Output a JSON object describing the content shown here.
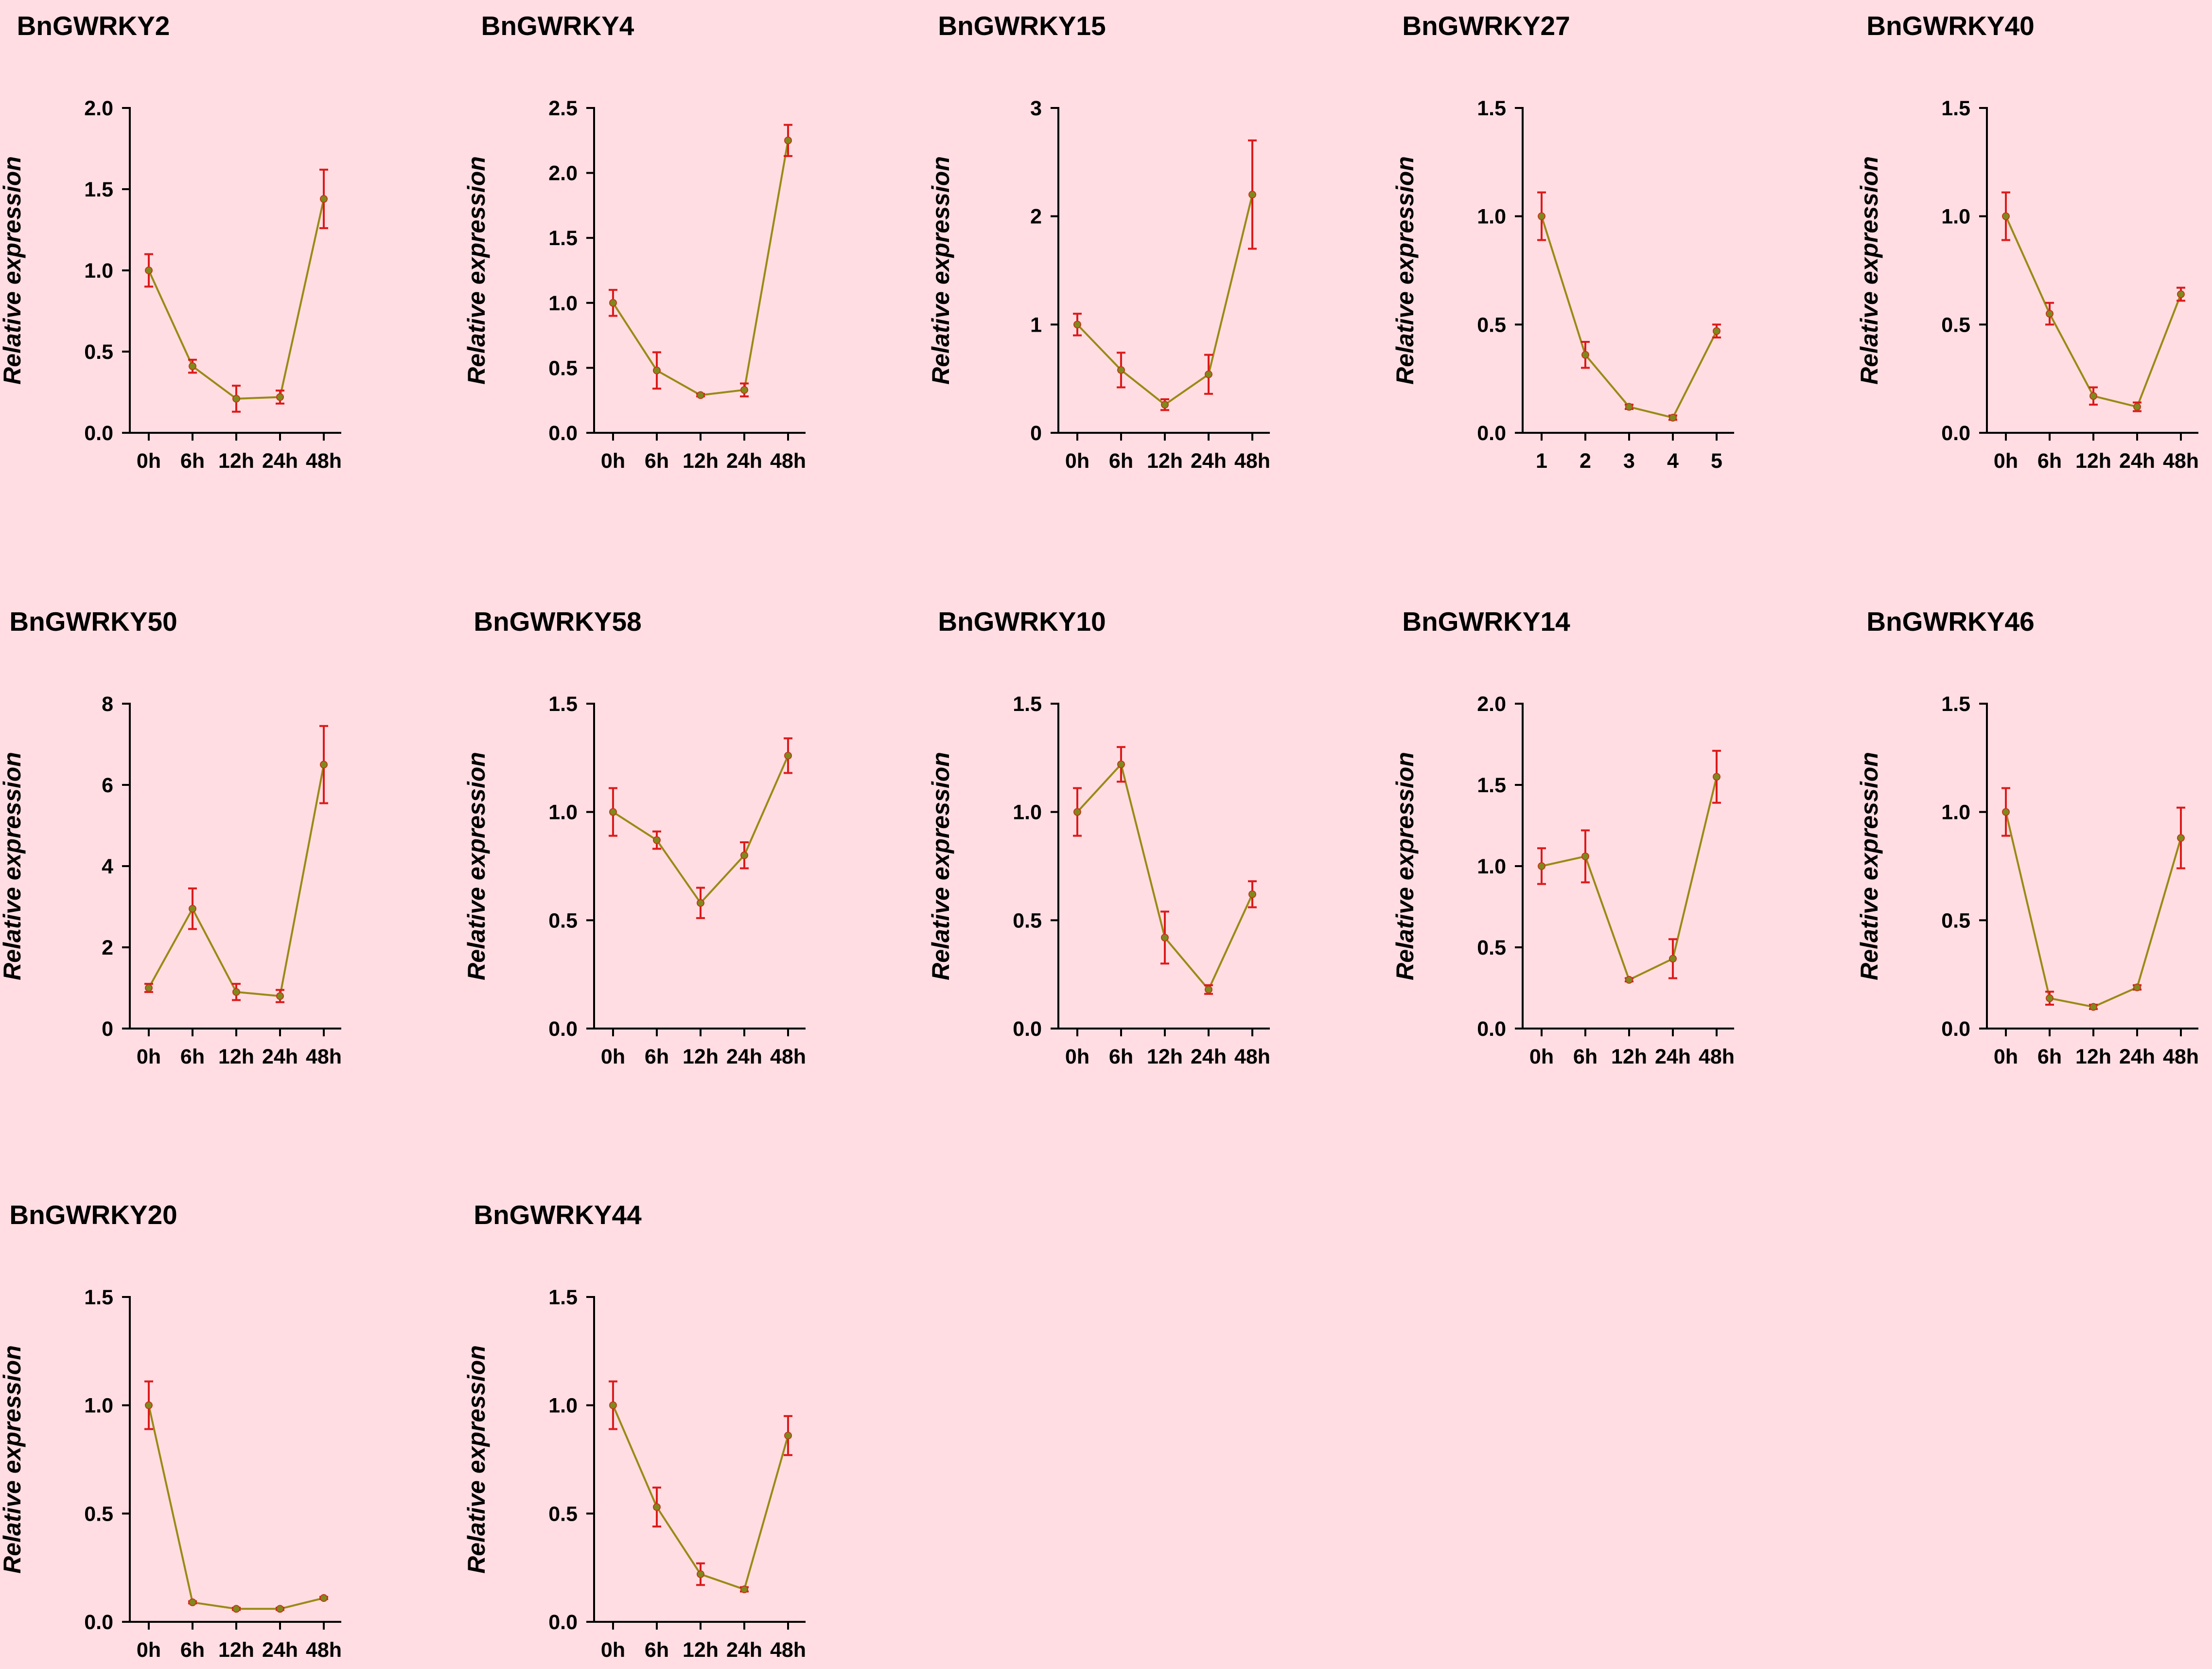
{
  "chart_data": [
    {
      "type": "line",
      "title": "BnGWRKY2",
      "ylabel": "Relative expression",
      "categories": [
        "0h",
        "6h",
        "12h",
        "24h",
        "48h"
      ],
      "ylim": [
        0,
        2.0
      ],
      "yticks": [
        "0.0",
        "0.5",
        "1.0",
        "1.5",
        "2.0"
      ],
      "values": [
        1.0,
        0.41,
        0.21,
        0.22,
        1.44
      ],
      "errors": [
        0.1,
        0.04,
        0.08,
        0.04,
        0.18
      ]
    },
    {
      "type": "line",
      "title": "BnGWRKY4",
      "ylabel": "Relative expression",
      "categories": [
        "0h",
        "6h",
        "12h",
        "24h",
        "48h"
      ],
      "ylim": [
        0,
        2.5
      ],
      "yticks": [
        "0.0",
        "0.5",
        "1.0",
        "1.5",
        "2.0",
        "2.5"
      ],
      "values": [
        1.0,
        0.48,
        0.29,
        0.33,
        2.25
      ],
      "errors": [
        0.1,
        0.14,
        0.01,
        0.05,
        0.12
      ]
    },
    {
      "type": "line",
      "title": "BnGWRKY15",
      "ylabel": "Relative expression",
      "categories": [
        "0h",
        "6h",
        "12h",
        "24h",
        "48h"
      ],
      "ylim": [
        0,
        3
      ],
      "yticks": [
        "0",
        "1",
        "2",
        "3"
      ],
      "values": [
        1.0,
        0.58,
        0.26,
        0.54,
        2.2
      ],
      "errors": [
        0.1,
        0.16,
        0.05,
        0.18,
        0.5
      ]
    },
    {
      "type": "line",
      "title": "BnGWRKY27",
      "ylabel": "Relative expression",
      "categories": [
        "1",
        "2",
        "3",
        "4",
        "5"
      ],
      "ylim": [
        0,
        1.5
      ],
      "yticks": [
        "0.0",
        "0.5",
        "1.0",
        "1.5"
      ],
      "values": [
        1.0,
        0.36,
        0.12,
        0.07,
        0.47
      ],
      "errors": [
        0.11,
        0.06,
        0.01,
        0.01,
        0.03
      ]
    },
    {
      "type": "line",
      "title": "BnGWRKY40",
      "ylabel": "Relative expression",
      "categories": [
        "0h",
        "6h",
        "12h",
        "24h",
        "48h"
      ],
      "ylim": [
        0,
        1.5
      ],
      "yticks": [
        "0.0",
        "0.5",
        "1.0",
        "1.5"
      ],
      "values": [
        1.0,
        0.55,
        0.17,
        0.12,
        0.64
      ],
      "errors": [
        0.11,
        0.05,
        0.04,
        0.02,
        0.03
      ]
    },
    {
      "type": "line",
      "title": "BnGWRKY50",
      "ylabel": "Relative expression",
      "categories": [
        "0h",
        "6h",
        "12h",
        "24h",
        "48h"
      ],
      "ylim": [
        0,
        8
      ],
      "yticks": [
        "0",
        "2",
        "4",
        "6",
        "8"
      ],
      "values": [
        1.0,
        2.95,
        0.9,
        0.8,
        6.5
      ],
      "errors": [
        0.1,
        0.5,
        0.2,
        0.15,
        0.95
      ]
    },
    {
      "type": "line",
      "title": "BnGWRKY58",
      "ylabel": "Relative expression",
      "categories": [
        "0h",
        "6h",
        "12h",
        "24h",
        "48h"
      ],
      "ylim": [
        0,
        1.5
      ],
      "yticks": [
        "0.0",
        "0.5",
        "1.0",
        "1.5"
      ],
      "values": [
        1.0,
        0.87,
        0.58,
        0.8,
        1.26
      ],
      "errors": [
        0.11,
        0.04,
        0.07,
        0.06,
        0.08
      ]
    },
    {
      "type": "line",
      "title": "BnGWRKY10",
      "ylabel": "Relative expression",
      "categories": [
        "0h",
        "6h",
        "12h",
        "24h",
        "48h"
      ],
      "ylim": [
        0,
        1.5
      ],
      "yticks": [
        "0.0",
        "0.5",
        "1.0",
        "1.5"
      ],
      "values": [
        1.0,
        1.22,
        0.42,
        0.18,
        0.62
      ],
      "errors": [
        0.11,
        0.08,
        0.12,
        0.02,
        0.06
      ]
    },
    {
      "type": "line",
      "title": "BnGWRKY14",
      "ylabel": "Relative expression",
      "categories": [
        "0h",
        "6h",
        "12h",
        "24h",
        "48h"
      ],
      "ylim": [
        0,
        2.0
      ],
      "yticks": [
        "0.0",
        "0.5",
        "1.0",
        "1.5",
        "2.0"
      ],
      "values": [
        1.0,
        1.06,
        0.3,
        0.43,
        1.55
      ],
      "errors": [
        0.11,
        0.16,
        0.01,
        0.12,
        0.16
      ]
    },
    {
      "type": "line",
      "title": "BnGWRKY46",
      "ylabel": "Relative expression",
      "categories": [
        "0h",
        "6h",
        "12h",
        "24h",
        "48h"
      ],
      "ylim": [
        0,
        1.5
      ],
      "yticks": [
        "0.0",
        "0.5",
        "1.0",
        "1.5"
      ],
      "values": [
        1.0,
        0.14,
        0.1,
        0.19,
        0.88
      ],
      "errors": [
        0.11,
        0.03,
        0.01,
        0.01,
        0.14
      ]
    },
    {
      "type": "line",
      "title": "BnGWRKY20",
      "ylabel": "Relative expression",
      "categories": [
        "0h",
        "6h",
        "12h",
        "24h",
        "48h"
      ],
      "ylim": [
        0,
        1.5
      ],
      "yticks": [
        "0.0",
        "0.5",
        "1.0",
        "1.5"
      ],
      "values": [
        1.0,
        0.09,
        0.06,
        0.06,
        0.11
      ],
      "errors": [
        0.11,
        0.005,
        0.005,
        0.005,
        0.005
      ]
    },
    {
      "type": "line",
      "title": "BnGWRKY44",
      "ylabel": "Relative expression",
      "categories": [
        "0h",
        "6h",
        "12h",
        "24h",
        "48h"
      ],
      "ylim": [
        0,
        1.5
      ],
      "yticks": [
        "0.0",
        "0.5",
        "1.0",
        "1.5"
      ],
      "values": [
        1.0,
        0.53,
        0.22,
        0.15,
        0.86
      ],
      "errors": [
        0.11,
        0.09,
        0.05,
        0.01,
        0.09
      ]
    }
  ]
}
